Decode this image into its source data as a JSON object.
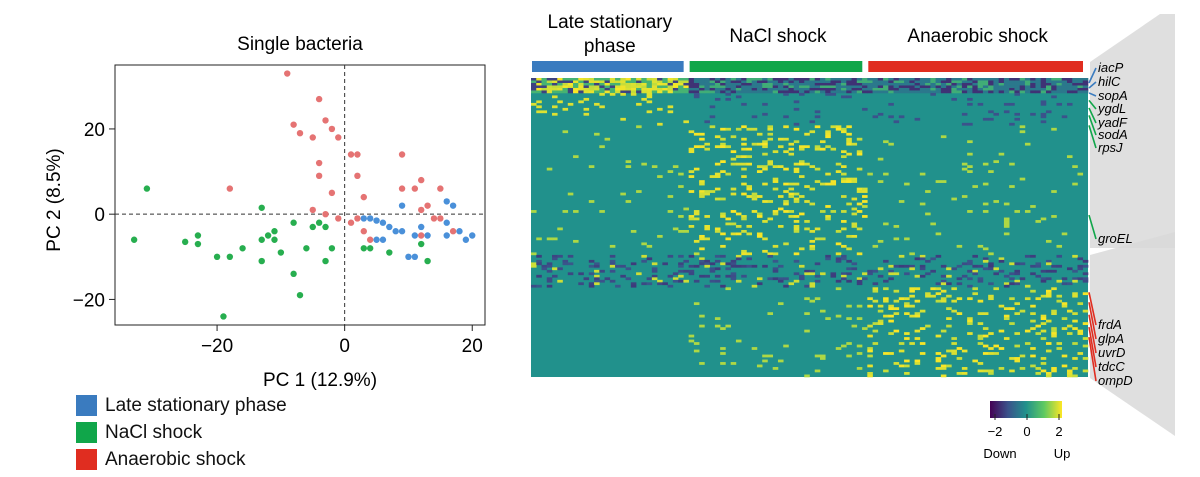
{
  "colors": {
    "late": "#3a7bbf",
    "nacl": "#10a64a",
    "anaer": "#e02d20",
    "scatter_late": "#4a90d9",
    "scatter_nacl": "#27ae4f",
    "scatter_anaer": "#e57373"
  },
  "legend": {
    "items": [
      {
        "label": "Late stationary phase",
        "color": "#3a7bbf"
      },
      {
        "label": "NaCl shock",
        "color": "#10a64a"
      },
      {
        "label": "Anaerobic shock",
        "color": "#e02d20"
      }
    ]
  },
  "chart_data": [
    {
      "type": "scatter",
      "title": "Single bacteria",
      "xlabel": "PC 1 (12.9%)",
      "ylabel": "PC 2 (8.5%)",
      "xlim": [
        -36,
        22
      ],
      "ylim": [
        -26,
        35
      ],
      "xticks": [
        -20,
        0,
        20
      ],
      "yticks": [
        -20,
        0,
        20
      ],
      "xtick_labels": [
        "−20",
        "0",
        "20"
      ],
      "ytick_labels": [
        "−20",
        "0",
        "20"
      ],
      "reference_lines": {
        "x": 0,
        "y": 0,
        "style": "dashed"
      },
      "series": [
        {
          "name": "Late stationary phase",
          "color": "#4a90d9",
          "points": [
            [
              4,
              -1
            ],
            [
              5,
              -1.5
            ],
            [
              6,
              -2
            ],
            [
              7,
              -3
            ],
            [
              5,
              -6
            ],
            [
              6,
              -6
            ],
            [
              9,
              -4
            ],
            [
              8,
              -4
            ],
            [
              9,
              2
            ],
            [
              11,
              -5
            ],
            [
              12,
              -3
            ],
            [
              13,
              -5
            ],
            [
              16,
              3
            ],
            [
              17,
              2
            ],
            [
              16,
              -2
            ],
            [
              16,
              -5
            ],
            [
              18,
              -4
            ],
            [
              19,
              -6
            ],
            [
              20,
              -5
            ],
            [
              10,
              -10
            ],
            [
              11,
              -10
            ],
            [
              3,
              -1
            ]
          ]
        },
        {
          "name": "NaCl shock",
          "color": "#27ae4f",
          "points": [
            [
              -31,
              6
            ],
            [
              -33,
              -6
            ],
            [
              -25,
              -6.5
            ],
            [
              -23,
              -5
            ],
            [
              -23,
              -7
            ],
            [
              -20,
              -10
            ],
            [
              -18,
              -10
            ],
            [
              -16,
              -8
            ],
            [
              -13,
              -6
            ],
            [
              -13,
              -11
            ],
            [
              -12,
              -5
            ],
            [
              -11,
              -6
            ],
            [
              -11,
              -4
            ],
            [
              -13,
              1.5
            ],
            [
              -10,
              -9
            ],
            [
              -8,
              -2
            ],
            [
              -8,
              -14
            ],
            [
              -7,
              -19
            ],
            [
              -6,
              -8
            ],
            [
              -4,
              -2
            ],
            [
              -3,
              -3
            ],
            [
              -3,
              -11
            ],
            [
              -2,
              -8
            ],
            [
              -5,
              -3
            ],
            [
              -19,
              -24
            ],
            [
              3,
              -8
            ],
            [
              4,
              -8
            ],
            [
              7,
              -9
            ],
            [
              12,
              -7
            ],
            [
              13,
              -11
            ]
          ]
        },
        {
          "name": "Anaerobic shock",
          "color": "#e57373",
          "points": [
            [
              -9,
              33
            ],
            [
              -8,
              21
            ],
            [
              -7,
              19
            ],
            [
              -5,
              18
            ],
            [
              -4,
              27
            ],
            [
              -3,
              22
            ],
            [
              -2,
              20
            ],
            [
              -1,
              18
            ],
            [
              -4,
              12
            ],
            [
              -4,
              9
            ],
            [
              -2,
              5
            ],
            [
              -5,
              1
            ],
            [
              -3,
              0
            ],
            [
              -1,
              -1
            ],
            [
              1,
              14
            ],
            [
              2,
              14
            ],
            [
              2,
              9
            ],
            [
              3,
              4
            ],
            [
              2,
              -1
            ],
            [
              3,
              -4
            ],
            [
              4,
              -6
            ],
            [
              1,
              -2
            ],
            [
              9,
              14
            ],
            [
              9,
              6
            ],
            [
              11,
              6
            ],
            [
              12,
              8
            ],
            [
              12,
              1
            ],
            [
              13,
              2
            ],
            [
              14,
              -1
            ],
            [
              12,
              -5
            ],
            [
              15,
              6
            ],
            [
              15,
              -1
            ],
            [
              17,
              -4
            ],
            [
              -18,
              6
            ]
          ]
        }
      ]
    },
    {
      "type": "heatmap",
      "title": "",
      "column_groups": [
        {
          "label": "Late stationary\nphase",
          "name": "Late stationary phase",
          "color": "#3a7bbf",
          "columns": 30
        },
        {
          "label": "NaCl shock",
          "name": "NaCl shock",
          "color": "#10a64a",
          "columns": 34
        },
        {
          "label": "Anaerobic shock",
          "name": "Anaerobic shock",
          "color": "#e02d20",
          "columns": 42
        }
      ],
      "rows": 120,
      "gene_labels": [
        "iacP",
        "hilC",
        "sopA",
        "ygdL",
        "yadF",
        "sodA",
        "rpsJ",
        "groEL",
        "frdA",
        "glpA",
        "uvrD",
        "tdcC",
        "ompD"
      ],
      "color_scale": {
        "min": -2,
        "max": 2,
        "ticks": [
          "−2",
          "0",
          "2"
        ],
        "low_label": "Down",
        "high_label": "Up",
        "stops": [
          "#440154",
          "#3b528b",
          "#21918c",
          "#5ec962",
          "#fde725"
        ]
      }
    }
  ]
}
